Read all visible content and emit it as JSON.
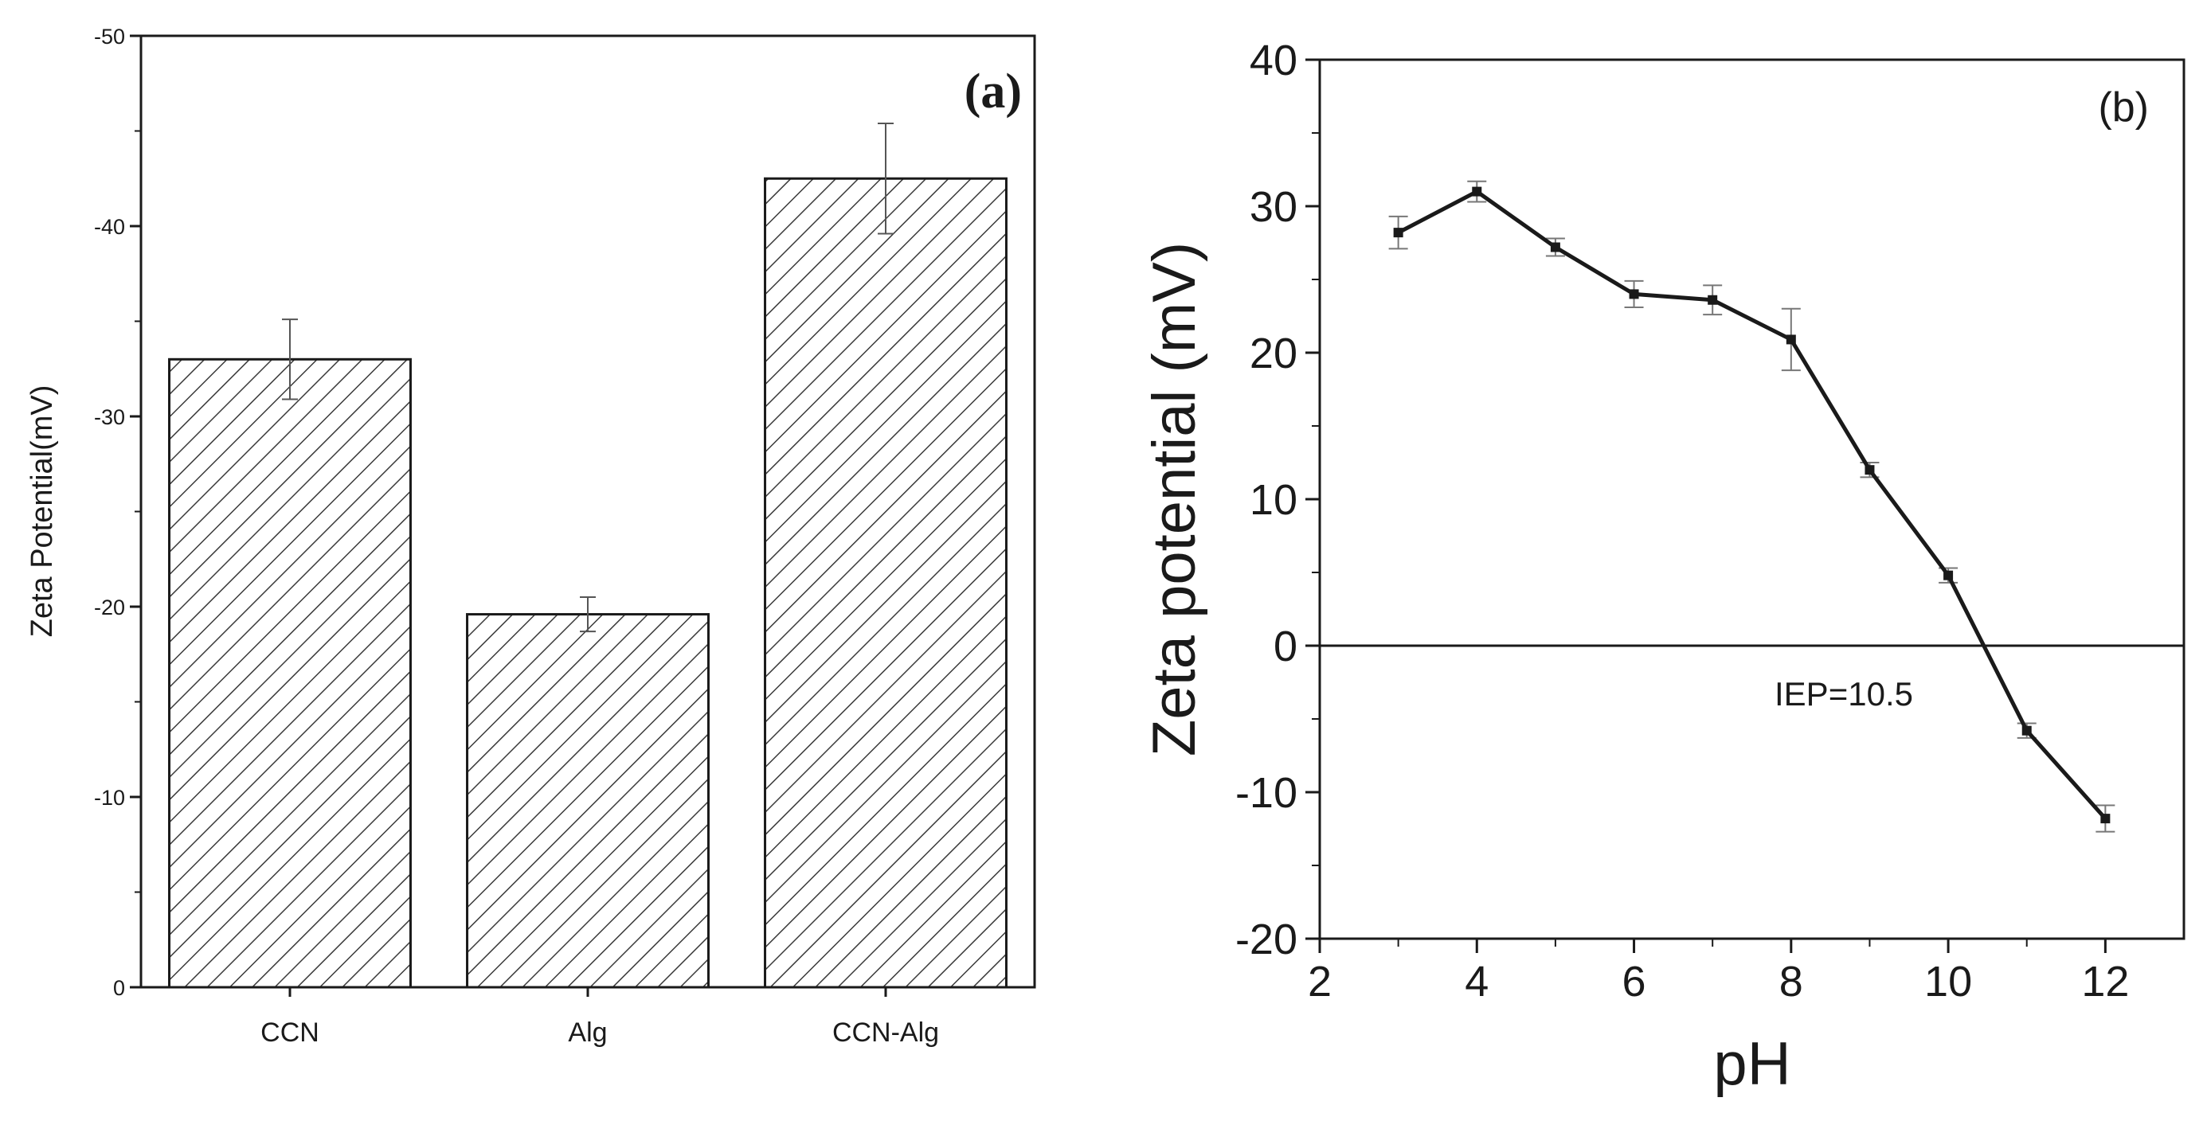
{
  "chart_data": [
    {
      "type": "bar",
      "panel_label": "(a)",
      "categories": [
        "CCN",
        "Alg",
        "CCN-Alg"
      ],
      "values": [
        -33.0,
        -19.6,
        -42.5
      ],
      "errors": [
        2.1,
        0.9,
        2.9
      ],
      "ylabel": "Zeta Potential(mV)",
      "xlabel": "",
      "ylim": [
        0,
        -50
      ],
      "yticks": [
        0,
        -10,
        -20,
        -30,
        -40,
        -50
      ],
      "ytick_labels": [
        "0",
        "-10",
        "-20",
        "-30",
        "-40",
        "-50"
      ],
      "fill": "diagonal hatch",
      "colors": {
        "bar_fill": "#ffffff",
        "hatch": "#3a3a3a",
        "outline": "#1a1a1a"
      }
    },
    {
      "type": "line",
      "panel_label": "(b)",
      "x": [
        3,
        4,
        5,
        6,
        7,
        8,
        9,
        10,
        11,
        12
      ],
      "y": [
        28.2,
        31.0,
        27.2,
        24.0,
        23.6,
        20.9,
        12.0,
        4.8,
        -5.8,
        -11.8
      ],
      "errors": [
        1.1,
        0.7,
        0.6,
        0.9,
        1.0,
        2.1,
        0.5,
        0.5,
        0.5,
        0.9
      ],
      "xlabel": "pH",
      "ylabel": "Zeta potential (mV)",
      "xlim": [
        2,
        13
      ],
      "ylim": [
        -20,
        40
      ],
      "xticks": [
        2,
        4,
        6,
        8,
        10,
        12
      ],
      "xtick_labels": [
        "2",
        "4",
        "6",
        "8",
        "10",
        "12"
      ],
      "yticks": [
        -20,
        -10,
        0,
        10,
        20,
        30,
        40
      ],
      "ytick_labels": [
        "-20",
        "-10",
        "0",
        "10",
        "20",
        "30",
        "40"
      ],
      "reference_line_y": 0,
      "annotation": "IEP=10.5",
      "colors": {
        "line": "#1a1a1a",
        "error_bar": "#777777",
        "zero_line": "#1a1a1a"
      }
    }
  ]
}
